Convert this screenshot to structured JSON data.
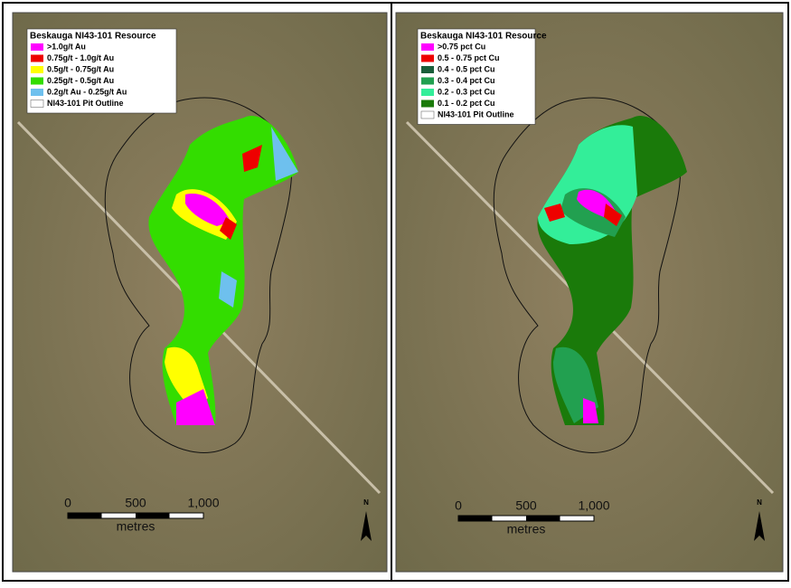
{
  "maps": [
    {
      "legend": {
        "title": "Beskauga NI43-101 Resource",
        "items": [
          {
            "label": ">1.0g/t Au",
            "color": "#ff00ff"
          },
          {
            "label": "0.75g/t - 1.0g/t Au",
            "color": "#ee0000"
          },
          {
            "label": "0.5g/t - 0.75g/t Au",
            "color": "#ffff00"
          },
          {
            "label": "0.25g/t - 0.5g/t Au",
            "color": "#33dd00"
          },
          {
            "label": "0.2g/t Au - 0.25g/t Au",
            "color": "#6ec0ee"
          },
          {
            "label": "NI43-101 Pit Outline",
            "color": "#ffffff"
          }
        ]
      },
      "scale": {
        "ticks": [
          "0",
          "500",
          "1,000"
        ],
        "unit": "metres"
      },
      "north": "N"
    },
    {
      "legend": {
        "title": "Beskauga NI43-101 Resource",
        "items": [
          {
            "label": ">0.75 pct Cu",
            "color": "#ff00ff"
          },
          {
            "label": "0.5 - 0.75 pct Cu",
            "color": "#ee0000"
          },
          {
            "label": "0.4 - 0.5 pct Cu",
            "color": "#1a5e3a"
          },
          {
            "label": "0.3 - 0.4 pct Cu",
            "color": "#22a050"
          },
          {
            "label": "0.2 - 0.3 pct Cu",
            "color": "#33ee99"
          },
          {
            "label": "0.1 - 0.2 pct Cu",
            "color": "#1a7a0a"
          },
          {
            "label": "NI43-101 Pit Outline",
            "color": "#ffffff"
          }
        ]
      },
      "scale": {
        "ticks": [
          "0",
          "500",
          "1,000"
        ],
        "unit": "metres"
      },
      "north": "N"
    }
  ]
}
